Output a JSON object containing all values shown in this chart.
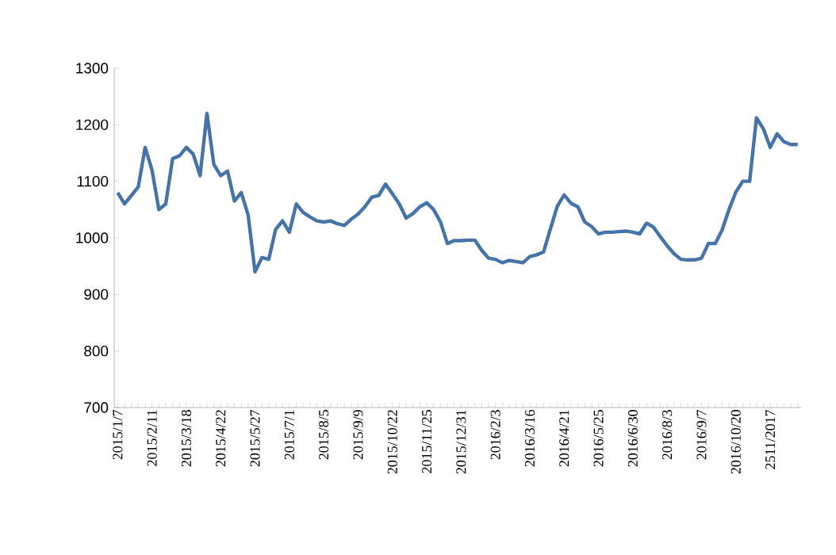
{
  "chart_data": {
    "type": "line",
    "categories": [
      "2015/1/7",
      null,
      null,
      null,
      null,
      "2015/2/11",
      null,
      null,
      null,
      null,
      "2015/3/18",
      null,
      null,
      null,
      null,
      "2015/4/22",
      null,
      null,
      null,
      null,
      "2015/5/27",
      null,
      null,
      null,
      null,
      "2015/7/1",
      null,
      null,
      null,
      null,
      "2015/8/5",
      null,
      null,
      null,
      null,
      "2015/9/9",
      null,
      null,
      null,
      null,
      "2015/10/22",
      null,
      null,
      null,
      null,
      "2015/11/25",
      null,
      null,
      null,
      null,
      "2015/12/31",
      null,
      null,
      null,
      null,
      "2016/2/3",
      null,
      null,
      null,
      null,
      "2016/3/16",
      null,
      null,
      null,
      null,
      "2016/4/21",
      null,
      null,
      null,
      null,
      "2016/5/25",
      null,
      null,
      null,
      null,
      "2016/6/30",
      null,
      null,
      null,
      null,
      "2016/8/3",
      null,
      null,
      null,
      null,
      "2016/9/7",
      null,
      null,
      null,
      null,
      "2016/10/20",
      null,
      null,
      null,
      null,
      "2511/2017",
      null,
      null,
      null,
      null
    ],
    "series": [
      {
        "color": "#4673a8",
        "values": [
          1080,
          1060,
          1075,
          1090,
          1160,
          1120,
          1050,
          1060,
          1140,
          1145,
          1160,
          1148,
          1110,
          1220,
          1130,
          1110,
          1118,
          1065,
          1080,
          1040,
          940,
          965,
          962,
          1015,
          1030,
          1010,
          1060,
          1045,
          1037,
          1030,
          1028,
          1030,
          1025,
          1022,
          1033,
          1042,
          1055,
          1072,
          1075,
          1095,
          1078,
          1060,
          1035,
          1043,
          1055,
          1062,
          1050,
          1028,
          990,
          995,
          995,
          996,
          996,
          978,
          964,
          962,
          956,
          960,
          958,
          956,
          967,
          970,
          975,
          1016,
          1056,
          1076,
          1061,
          1055,
          1028,
          1020,
          1007,
          1010,
          1010,
          1011,
          1012,
          1010,
          1007,
          1026,
          1019,
          1002,
          986,
          972,
          962,
          961,
          961,
          964,
          990,
          990,
          1014,
          1050,
          1081,
          1100,
          1100,
          1212,
          1193,
          1160,
          1184,
          1170,
          1165,
          1165
        ]
      }
    ],
    "ylim": [
      700,
      1300
    ],
    "yticks": [
      700,
      800,
      900,
      1000,
      1100,
      1200,
      1300
    ],
    "grid": false,
    "marker": "none",
    "line_style": "solid"
  }
}
